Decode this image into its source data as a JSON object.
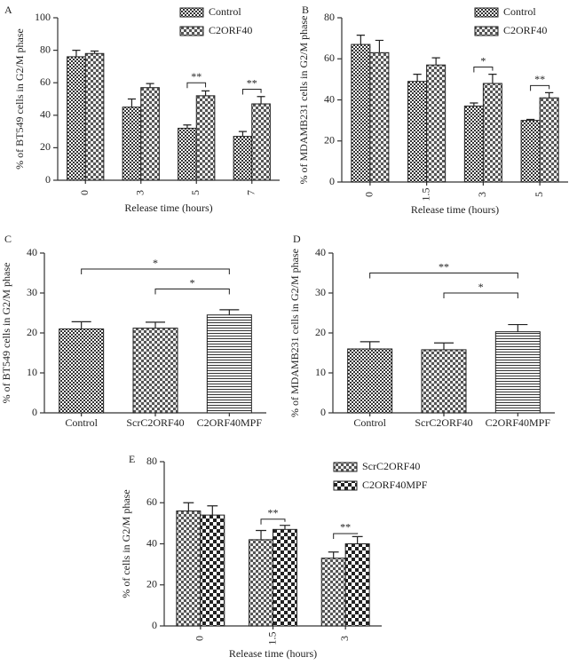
{
  "chart_data": [
    {
      "type": "bar",
      "panel": "A",
      "ylabel": "% of BT549 cells in G2/M phase",
      "xlabel": "Release time (hours)",
      "categories": [
        "0",
        "3",
        "5",
        "7"
      ],
      "series": [
        {
          "name": "Control",
          "pattern": "checker-small",
          "values": [
            76,
            45,
            32,
            27
          ],
          "errors": [
            4,
            5,
            2,
            3
          ]
        },
        {
          "name": "C2ORF40",
          "pattern": "checker-large",
          "values": [
            78,
            57,
            52,
            47
          ],
          "errors": [
            1.5,
            2.5,
            3,
            4.5
          ]
        }
      ],
      "ylim": [
        0,
        100
      ],
      "yticks": [
        0,
        20,
        40,
        60,
        80,
        100
      ],
      "legend": "top-right",
      "annotations": [
        {
          "text": "**",
          "category": 2,
          "y": 60
        },
        {
          "text": "**",
          "category": 3,
          "y": 56
        }
      ]
    },
    {
      "type": "bar",
      "panel": "B",
      "ylabel": "% of MDAMB231 cells in G2/M phase",
      "xlabel": "Release time (hours)",
      "categories": [
        "0",
        "1.5",
        "3",
        "5"
      ],
      "series": [
        {
          "name": "Control",
          "pattern": "checker-small",
          "values": [
            67,
            49,
            37,
            30
          ],
          "errors": [
            4.5,
            3.5,
            1.5,
            0.5
          ]
        },
        {
          "name": "C2ORF40",
          "pattern": "checker-large",
          "values": [
            63,
            57,
            48,
            41
          ],
          "errors": [
            6,
            3.5,
            4.5,
            2.5
          ]
        }
      ],
      "ylim": [
        0,
        80
      ],
      "yticks": [
        0,
        20,
        40,
        60,
        80
      ],
      "legend": "top-right",
      "annotations": [
        {
          "text": "*",
          "category": 2,
          "y": 56
        },
        {
          "text": "**",
          "category": 3,
          "y": 47
        }
      ]
    },
    {
      "type": "bar",
      "panel": "C",
      "ylabel": "% of BT549 cells in G2/M phase",
      "categories": [
        "Control",
        "ScrC2ORF40",
        "C2ORF40MPF"
      ],
      "values": [
        21,
        21.2,
        24.5
      ],
      "errors": [
        1.8,
        1.5,
        1.3
      ],
      "patterns": [
        "checker-small",
        "checker-large",
        "hlines"
      ],
      "ylim": [
        0,
        40
      ],
      "yticks": [
        0,
        10,
        20,
        30,
        40
      ],
      "annotations": [
        {
          "text": "*",
          "from": 0,
          "to": 2,
          "y": 36
        },
        {
          "text": "*",
          "from": 1,
          "to": 2,
          "y": 31
        }
      ]
    },
    {
      "type": "bar",
      "panel": "D",
      "ylabel": "% of MDAMB231 cells in G2/M phase",
      "categories": [
        "Control",
        "ScrC2ORF40",
        "C2ORF40MPF"
      ],
      "values": [
        16,
        15.8,
        20.3
      ],
      "errors": [
        1.8,
        1.7,
        1.8
      ],
      "patterns": [
        "checker-small",
        "checker-large",
        "hlines"
      ],
      "ylim": [
        0,
        40
      ],
      "yticks": [
        0,
        10,
        20,
        30,
        40
      ],
      "annotations": [
        {
          "text": "**",
          "from": 0,
          "to": 2,
          "y": 35
        },
        {
          "text": "*",
          "from": 1,
          "to": 2,
          "y": 30
        }
      ]
    },
    {
      "type": "bar",
      "panel": "E",
      "ylabel": "% of  cells in G2/M phase",
      "xlabel": "Release time (hours)",
      "categories": [
        "0",
        "1.5",
        "3"
      ],
      "series": [
        {
          "name": "ScrC2ORF40",
          "pattern": "checker-large",
          "values": [
            56,
            42,
            33
          ],
          "errors": [
            4,
            4.5,
            3
          ]
        },
        {
          "name": "C2ORF40MPF",
          "pattern": "checker-xl",
          "values": [
            54,
            47,
            40
          ],
          "errors": [
            4.5,
            2,
            3.5
          ]
        }
      ],
      "ylim": [
        0,
        80
      ],
      "yticks": [
        0,
        20,
        40,
        60,
        80
      ],
      "legend": "top-right",
      "annotations": [
        {
          "text": "**",
          "category": 1,
          "y": 52
        },
        {
          "text": "**",
          "category": 2,
          "y": 45
        }
      ]
    }
  ]
}
